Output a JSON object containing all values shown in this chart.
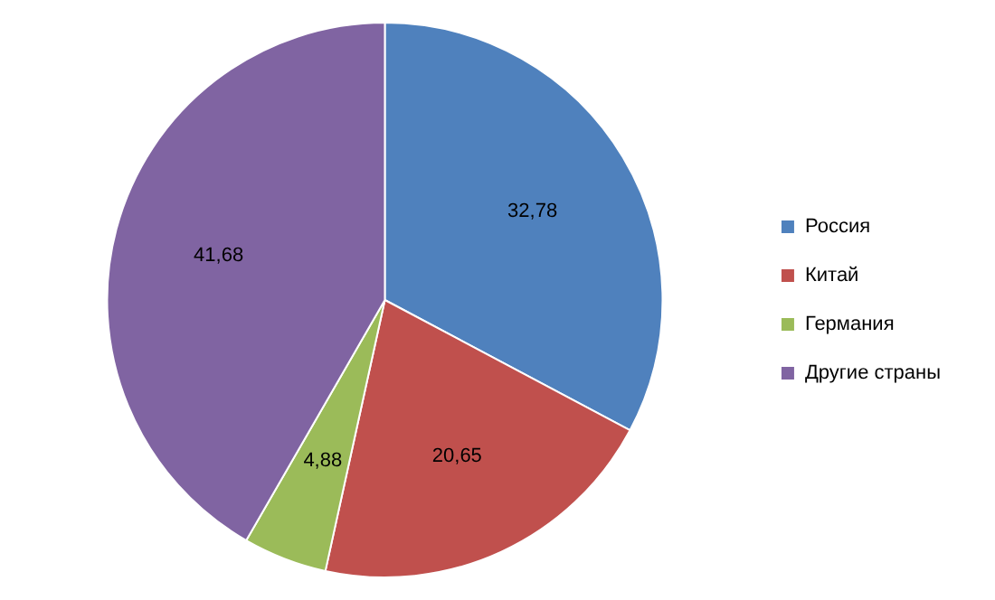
{
  "chart_data": {
    "type": "pie",
    "categories": [
      "Россия",
      "Китай",
      "Германия",
      "Другие страны"
    ],
    "values": [
      32.78,
      20.65,
      4.88,
      41.68
    ],
    "value_labels": [
      "32,78",
      "20,65",
      "4,88",
      "41,68"
    ],
    "colors": [
      "#4f81bd",
      "#c0504d",
      "#9bbb59",
      "#8064a2"
    ],
    "legend": "right"
  }
}
